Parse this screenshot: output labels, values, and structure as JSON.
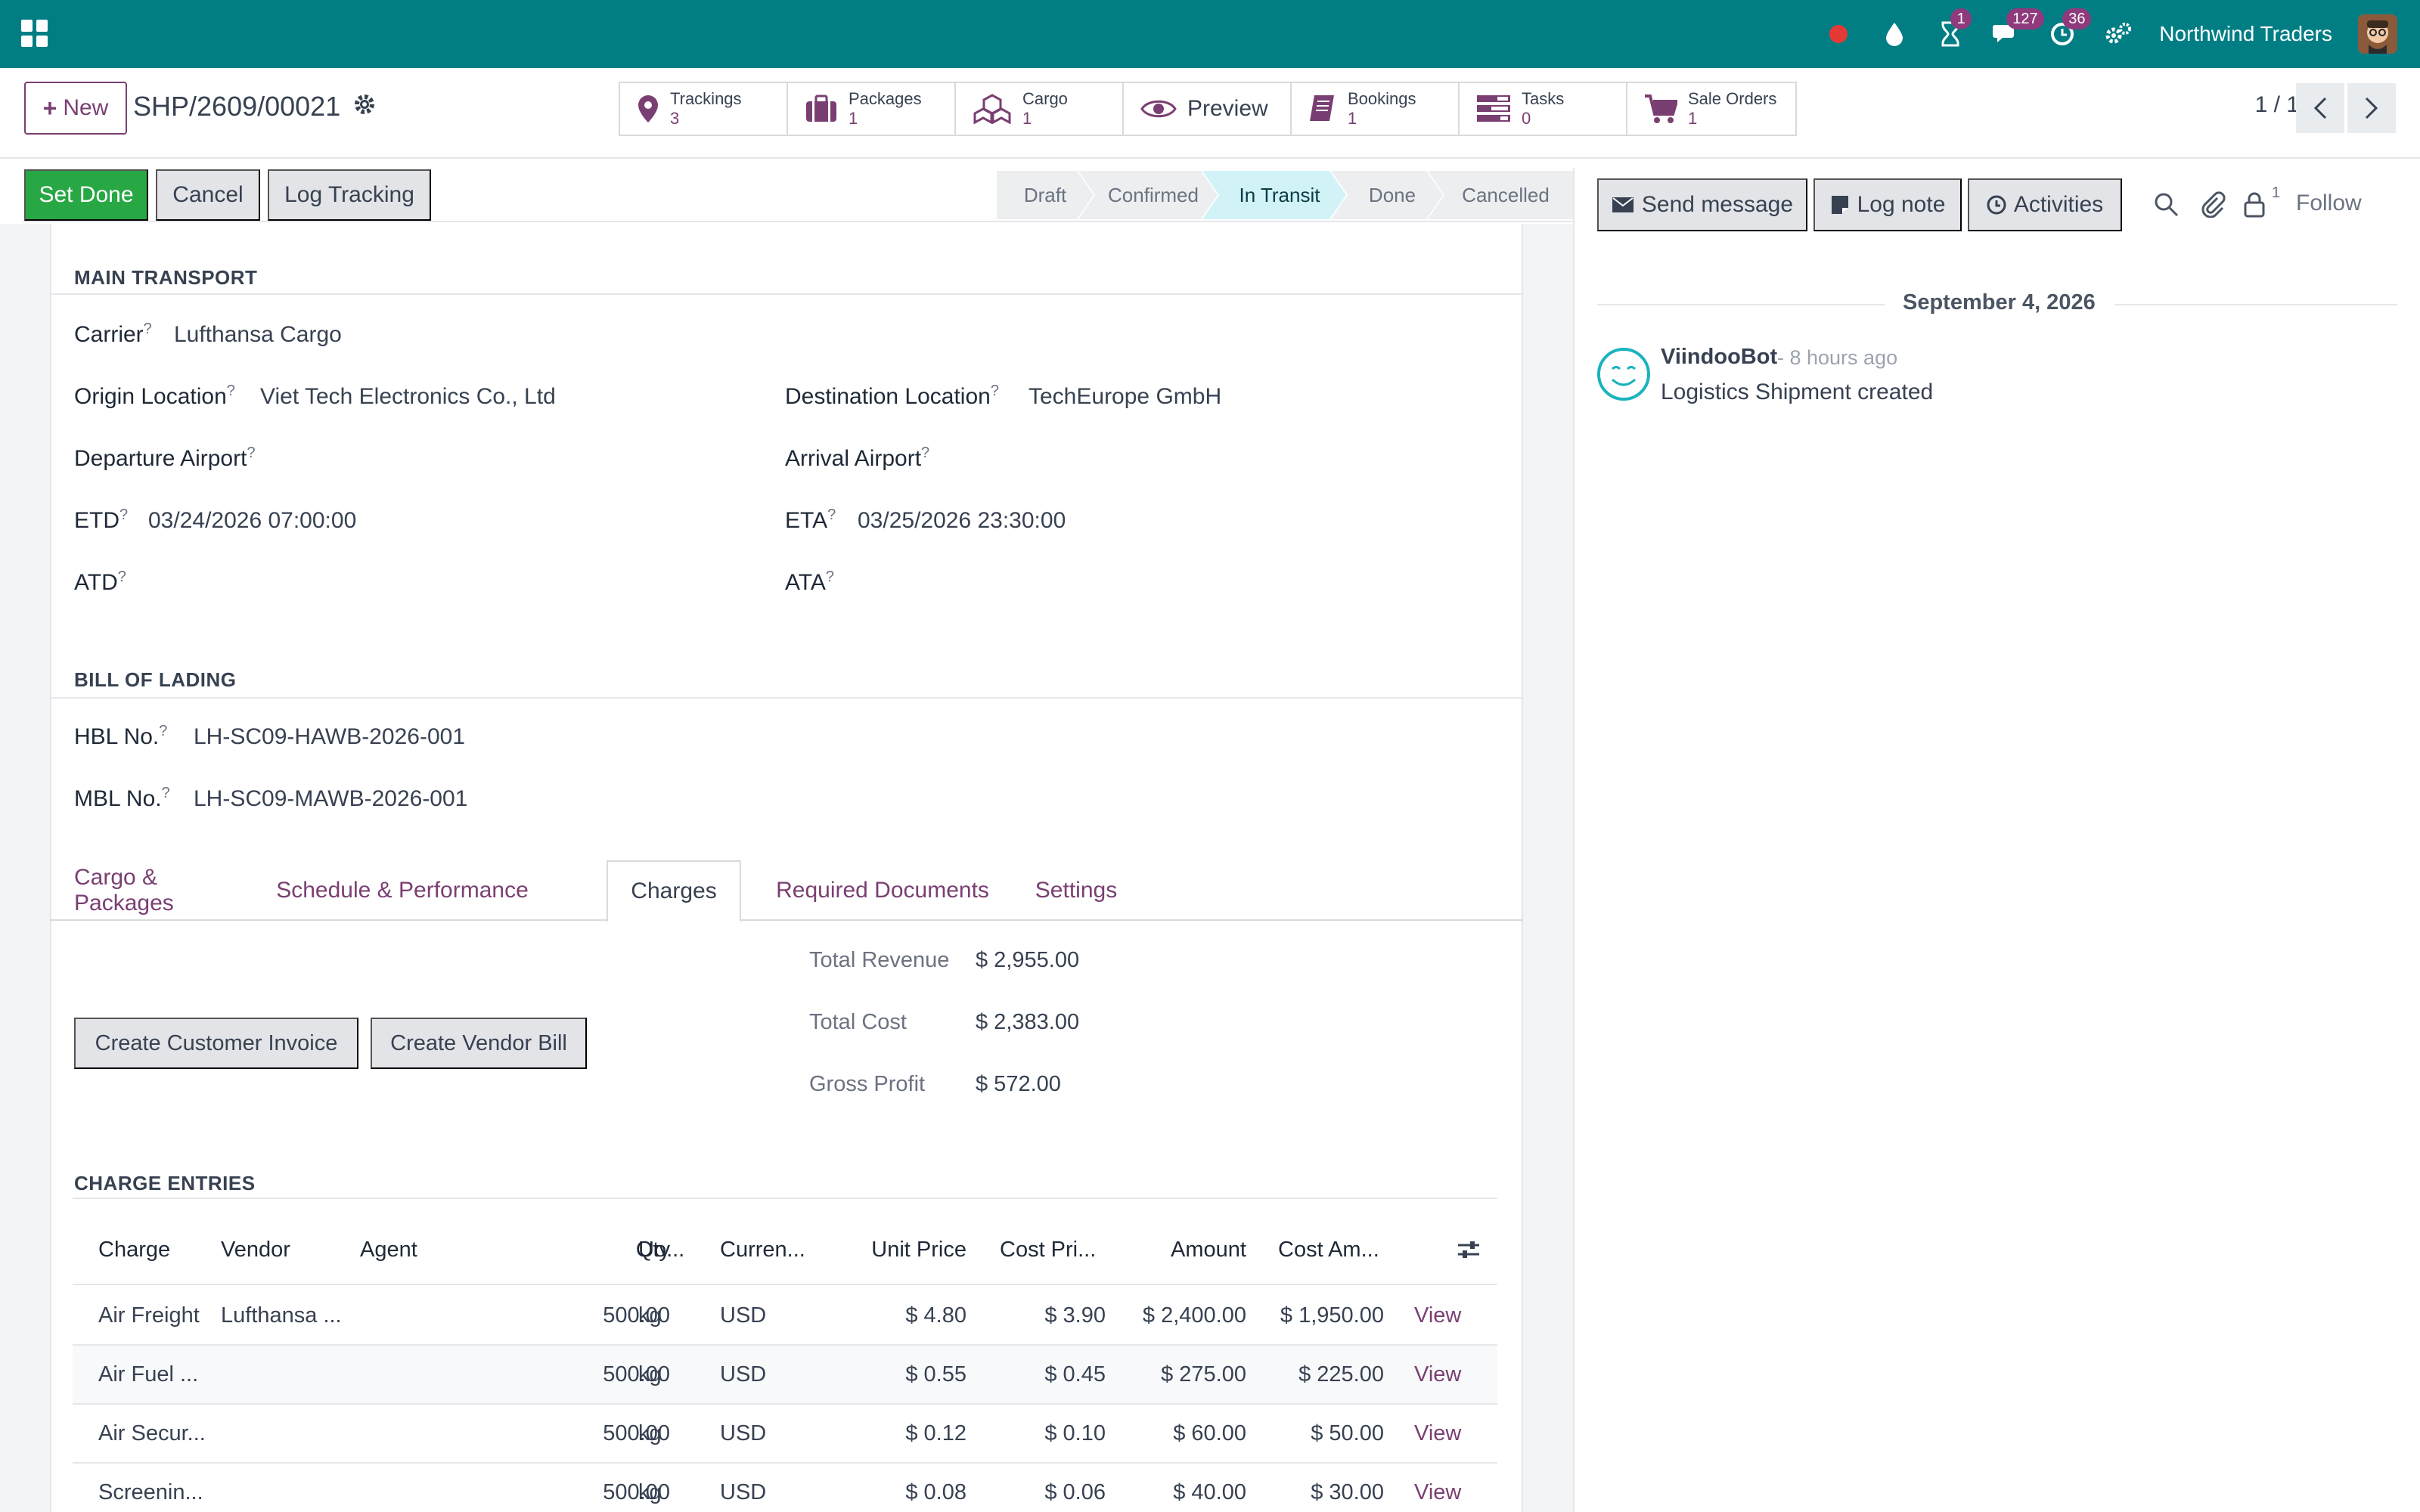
{
  "navbar": {
    "company": "Northwind Traders",
    "badges": {
      "activities": "1",
      "messages": "127",
      "timesheets": "36"
    },
    "accent": "#017e84"
  },
  "control_panel": {
    "new_label": "New",
    "record_name": "SHP/2609/00021",
    "smart_buttons": [
      {
        "label": "Trackings",
        "value": "3",
        "icon": "map-pin-icon"
      },
      {
        "label": "Packages",
        "value": "1",
        "icon": "suitcase-icon"
      },
      {
        "label": "Cargo",
        "value": "1",
        "icon": "cubes-icon"
      },
      {
        "label": "Preview",
        "value": "",
        "icon": "eye-icon"
      },
      {
        "label": "Bookings",
        "value": "1",
        "icon": "book-icon"
      },
      {
        "label": "Tasks",
        "value": "0",
        "icon": "tasks-icon"
      },
      {
        "label": "Sale Orders",
        "value": "1",
        "icon": "cart-icon"
      }
    ],
    "pager": "1 / 1"
  },
  "statusbar": {
    "buttons": {
      "set_done": "Set Done",
      "cancel": "Cancel",
      "log_tracking": "Log Tracking"
    },
    "stages": [
      "Draft",
      "Confirmed",
      "In Transit",
      "Done",
      "Cancelled"
    ],
    "current_stage": "In Transit"
  },
  "main_transport": {
    "title": "MAIN TRANSPORT",
    "carrier_label": "Carrier",
    "carrier": "Lufthansa Cargo",
    "origin_label": "Origin Location",
    "origin": "Viet Tech Electronics Co., Ltd",
    "destination_label": "Destination Location",
    "destination": "TechEurope GmbH",
    "departure_airport_label": "Departure Airport",
    "arrival_airport_label": "Arrival Airport",
    "etd_label": "ETD",
    "etd": "03/24/2026 07:00:00",
    "eta_label": "ETA",
    "eta": "03/25/2026 23:30:00",
    "atd_label": "ATD",
    "ata_label": "ATA"
  },
  "bill_of_lading": {
    "title": "BILL OF LADING",
    "hbl_label": "HBL No.",
    "hbl": "LH-SC09-HAWB-2026-001",
    "mbl_label": "MBL No.",
    "mbl": "LH-SC09-MAWB-2026-001"
  },
  "tabs": [
    "Cargo & Packages",
    "Schedule & Performance",
    "Charges",
    "Required Documents",
    "Settings"
  ],
  "active_tab": "Charges",
  "charges": {
    "create_invoice": "Create Customer Invoice",
    "create_bill": "Create Vendor Bill",
    "total_revenue_label": "Total Revenue",
    "total_revenue": "$ 2,955.00",
    "total_cost_label": "Total Cost",
    "total_cost": "$ 2,383.00",
    "gross_profit_label": "Gross Profit",
    "gross_profit": "$ 572.00",
    "entries_title": "CHARGE ENTRIES",
    "columns": [
      "Charge",
      "Vendor",
      "Agent",
      "Qty",
      "Uo...",
      "Curren...",
      "Unit Price",
      "Cost Pri...",
      "Amount",
      "Cost Am..."
    ],
    "rows": [
      {
        "charge": "Air Freight",
        "vendor": "Lufthansa ...",
        "agent": "",
        "qty": "500.00",
        "uom": "kg",
        "currency": "USD",
        "unit_price": "$ 4.80",
        "cost_price": "$ 3.90",
        "amount": "$ 2,400.00",
        "cost_amount": "$ 1,950.00",
        "action": "View"
      },
      {
        "charge": "Air Fuel ...",
        "vendor": "",
        "agent": "",
        "qty": "500.00",
        "uom": "kg",
        "currency": "USD",
        "unit_price": "$ 0.55",
        "cost_price": "$ 0.45",
        "amount": "$ 275.00",
        "cost_amount": "$ 225.00",
        "action": "View"
      },
      {
        "charge": "Air Secur...",
        "vendor": "",
        "agent": "",
        "qty": "500.00",
        "uom": "kg",
        "currency": "USD",
        "unit_price": "$ 0.12",
        "cost_price": "$ 0.10",
        "amount": "$ 60.00",
        "cost_amount": "$ 50.00",
        "action": "View"
      },
      {
        "charge": "Screenin...",
        "vendor": "",
        "agent": "",
        "qty": "500.00",
        "uom": "kg",
        "currency": "USD",
        "unit_price": "$ 0.08",
        "cost_price": "$ 0.06",
        "amount": "$ 40.00",
        "cost_amount": "$ 30.00",
        "action": "View"
      }
    ]
  },
  "chatter": {
    "send_message": "Send message",
    "log_note": "Log note",
    "activities": "Activities",
    "attachments_count": "1",
    "follow": "Follow",
    "date": "September 4, 2026",
    "author": "ViindooBot",
    "time": "- 8 hours ago",
    "message": "Logistics Shipment created"
  }
}
